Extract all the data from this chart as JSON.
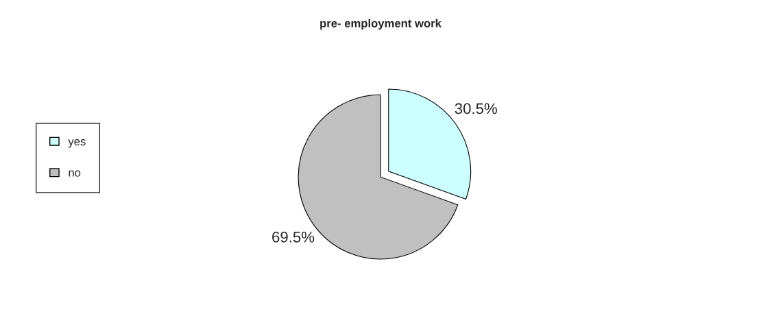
{
  "chart_data": {
    "type": "pie",
    "title": "pre- employment work",
    "categories": [
      "yes",
      "no"
    ],
    "values": [
      30.5,
      69.5
    ],
    "colors": [
      "#ccffff",
      "#c0c0c0"
    ],
    "value_labels": [
      "30.5%",
      "69.5%"
    ],
    "legend": "left"
  }
}
